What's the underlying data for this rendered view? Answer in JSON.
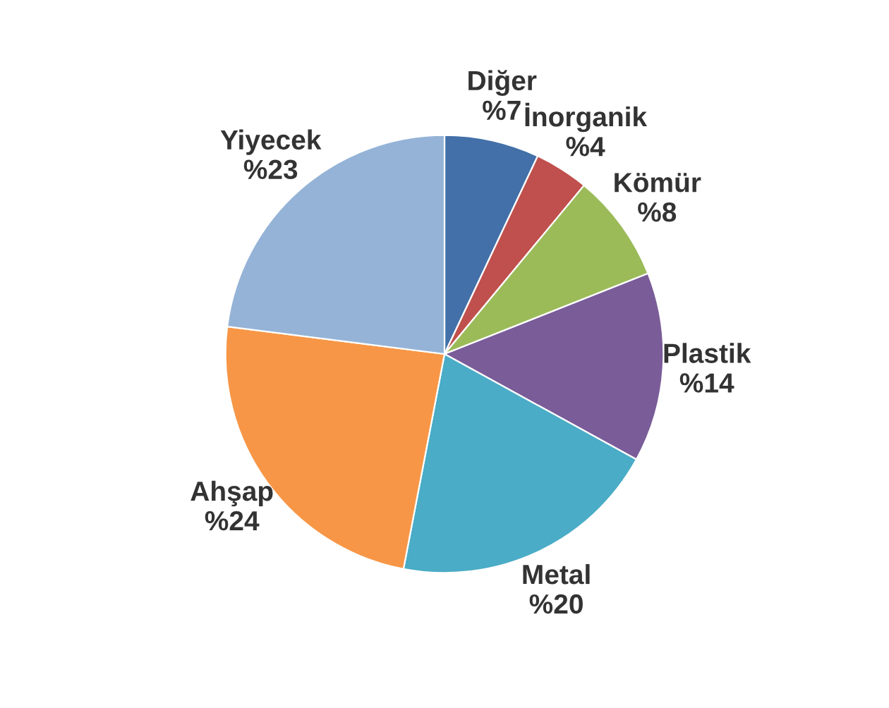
{
  "chart_data": {
    "type": "pie",
    "categories": [
      "Diğer",
      "İnorganik",
      "Kömür",
      "Plastik",
      "Metal",
      "Ahşap",
      "Yiyecek"
    ],
    "values": [
      7,
      4,
      8,
      14,
      20,
      24,
      23
    ],
    "value_labels": [
      "%7",
      "%4",
      "%8",
      "%14",
      "%20",
      "%24",
      "%23"
    ],
    "colors": [
      "#4370a8",
      "#c0504d",
      "#9bbb59",
      "#7a5c99",
      "#4aacc6",
      "#f79646",
      "#95b3d7"
    ]
  }
}
